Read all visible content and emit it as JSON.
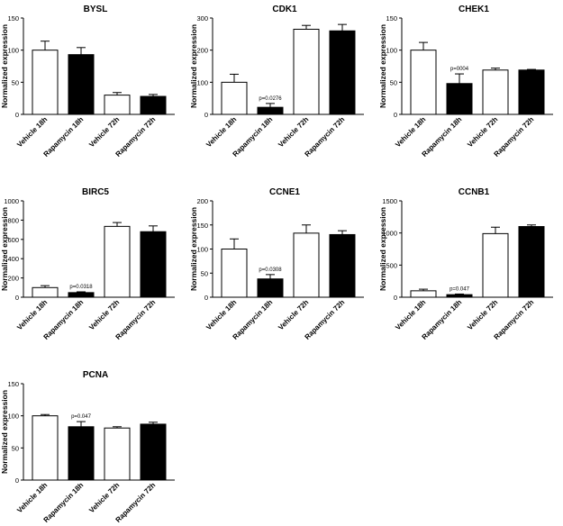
{
  "chart_data": [
    {
      "type": "bar",
      "title": "BYSL",
      "ylabel": "Normalized expression",
      "categories": [
        "Vehicle 18h",
        "Rapamycin 18h",
        "Vehicle 72h",
        "Rapamycin 72h"
      ],
      "values": [
        100,
        93,
        30,
        28
      ],
      "errors": [
        14,
        11,
        4,
        3
      ],
      "fills": [
        "white",
        "black",
        "white",
        "black"
      ],
      "ylim": [
        0,
        150
      ],
      "yticks": [
        0,
        50,
        100,
        150
      ],
      "annotations": [
        "",
        "",
        "",
        ""
      ]
    },
    {
      "type": "bar",
      "title": "CDK1",
      "ylabel": "Normalized expression",
      "categories": [
        "Vehicle 18h",
        "Rapamycin 18h",
        "Vehicle 72h",
        "Rapamycin 72h"
      ],
      "values": [
        100,
        22,
        265,
        260
      ],
      "errors": [
        25,
        12,
        12,
        20
      ],
      "fills": [
        "white",
        "black",
        "white",
        "black"
      ],
      "ylim": [
        0,
        300
      ],
      "yticks": [
        0,
        100,
        200,
        300
      ],
      "annotations": [
        "",
        "p=0.0276",
        "",
        ""
      ]
    },
    {
      "type": "bar",
      "title": "CHEK1",
      "ylabel": "Normalized expression",
      "categories": [
        "Vehicle 18h",
        "Rapamycin 18h",
        "Vehicle 72h",
        "Rapamycin 72h"
      ],
      "values": [
        100,
        48,
        69,
        69
      ],
      "errors": [
        12,
        15,
        3,
        1
      ],
      "fills": [
        "white",
        "black",
        "white",
        "black"
      ],
      "ylim": [
        0,
        150
      ],
      "yticks": [
        0,
        50,
        100,
        150
      ],
      "annotations": [
        "",
        "p=0004",
        "",
        ""
      ]
    },
    {
      "type": "bar",
      "title": "BIRC5",
      "ylabel": "Normalized expression",
      "categories": [
        "Vehicle 18h",
        "Rapamycin 18h",
        "Vehicle 72h",
        "Rapamycin 72h"
      ],
      "values": [
        100,
        48,
        735,
        680
      ],
      "errors": [
        20,
        8,
        40,
        60
      ],
      "fills": [
        "white",
        "black",
        "white",
        "black"
      ],
      "ylim": [
        0,
        1000
      ],
      "yticks": [
        0,
        200,
        400,
        600,
        800,
        1000
      ],
      "annotations": [
        "",
        "p=0.0318",
        "",
        ""
      ]
    },
    {
      "type": "bar",
      "title": "CCNE1",
      "ylabel": "Normalized expression",
      "categories": [
        "Vehicle 18h",
        "Rapamycin 18h",
        "Vehicle 72h",
        "Rapamycin 72h"
      ],
      "values": [
        100,
        38,
        133,
        130
      ],
      "errors": [
        21,
        9,
        17,
        8
      ],
      "fills": [
        "white",
        "black",
        "white",
        "black"
      ],
      "ylim": [
        0,
        200
      ],
      "yticks": [
        0,
        50,
        100,
        150,
        200
      ],
      "annotations": [
        "",
        "p=0.0308",
        "",
        ""
      ]
    },
    {
      "type": "bar",
      "title": "CCNB1",
      "ylabel": "Normalized expression",
      "categories": [
        "Vehicle 18h",
        "Rapamycin 18h",
        "Vehicle 72h",
        "Rapamycin 72h"
      ],
      "values": [
        100,
        40,
        990,
        1100
      ],
      "errors": [
        25,
        10,
        100,
        25
      ],
      "fills": [
        "white",
        "black",
        "white",
        "black"
      ],
      "ylim": [
        0,
        1500
      ],
      "yticks": [
        0,
        500,
        1000,
        1500
      ],
      "annotations": [
        "",
        "p=0.047",
        "",
        ""
      ]
    },
    {
      "type": "bar",
      "title": "PCNA",
      "ylabel": "Normalized expression",
      "categories": [
        "Vehicle 18h",
        "Rapamycin 18h",
        "Vehicle 72h",
        "Rapamycin 72h"
      ],
      "values": [
        100,
        83,
        81,
        87
      ],
      "errors": [
        2,
        8,
        2,
        3
      ],
      "fills": [
        "white",
        "black",
        "white",
        "black"
      ],
      "ylim": [
        0,
        150
      ],
      "yticks": [
        0,
        50,
        100,
        150
      ],
      "annotations": [
        "",
        "p=0.047",
        "",
        ""
      ]
    }
  ]
}
